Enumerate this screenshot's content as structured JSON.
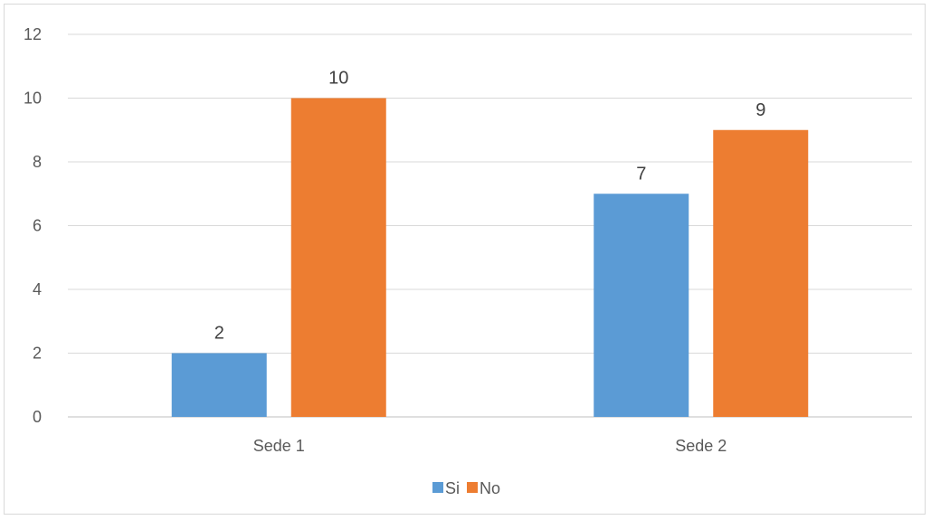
{
  "chart_data": {
    "type": "bar",
    "title": "",
    "xlabel": "",
    "ylabel": "",
    "categories": [
      "Sede 1",
      "Sede 2"
    ],
    "series": [
      {
        "name": "Si",
        "values": [
          2,
          7
        ],
        "color": "#5b9bd5"
      },
      {
        "name": "No",
        "values": [
          10,
          9
        ],
        "color": "#ed7d31"
      }
    ],
    "ylim": [
      0,
      12
    ],
    "yticks": [
      0,
      2,
      4,
      6,
      8,
      10,
      12
    ],
    "grid": true,
    "data_labels": true,
    "legend_position": "bottom"
  }
}
